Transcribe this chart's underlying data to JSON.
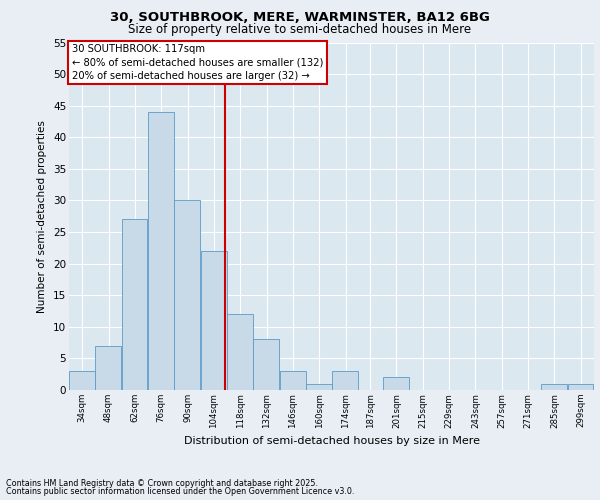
{
  "title1": "30, SOUTHBROOK, MERE, WARMINSTER, BA12 6BG",
  "title2": "Size of property relative to semi-detached houses in Mere",
  "xlabel": "Distribution of semi-detached houses by size in Mere",
  "ylabel": "Number of semi-detached properties",
  "annotation_line1": "30 SOUTHBROOK: 117sqm",
  "annotation_line2": "← 80% of semi-detached houses are smaller (132)",
  "annotation_line3": "20% of semi-detached houses are larger (32) →",
  "bins": [
    34,
    48,
    62,
    76,
    90,
    104,
    118,
    132,
    146,
    160,
    174,
    187,
    201,
    215,
    229,
    243,
    257,
    271,
    285,
    299,
    313
  ],
  "counts": [
    3,
    7,
    27,
    44,
    30,
    22,
    12,
    8,
    3,
    1,
    3,
    0,
    2,
    0,
    0,
    0,
    0,
    0,
    1,
    1
  ],
  "bar_color": "#c8d9e8",
  "bar_edge_color": "#5a9ac8",
  "vline_x": 117,
  "vline_color": "#cc0000",
  "box_color": "#cc0000",
  "ylim": [
    0,
    55
  ],
  "yticks": [
    0,
    5,
    10,
    15,
    20,
    25,
    30,
    35,
    40,
    45,
    50,
    55
  ],
  "bg_color": "#e8eef4",
  "plot_bg_color": "#dce8f0",
  "footer1": "Contains HM Land Registry data © Crown copyright and database right 2025.",
  "footer2": "Contains public sector information licensed under the Open Government Licence v3.0."
}
